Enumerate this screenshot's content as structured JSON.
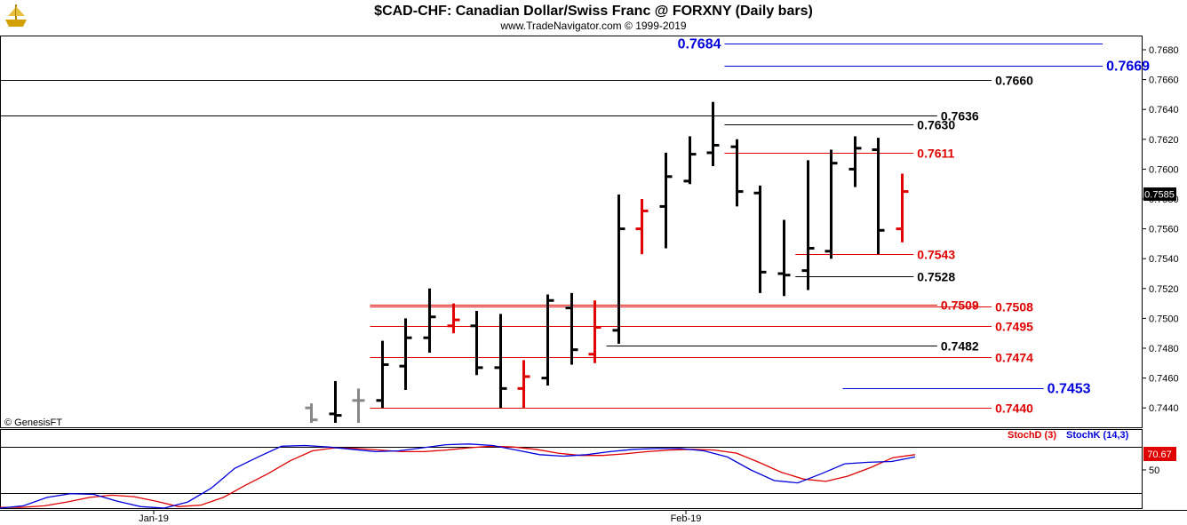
{
  "header": {
    "title": "$CAD-CHF:  Canadian Dollar/Swiss Franc @ FORXNY  (Daily bars)",
    "subtitle": "www.TradeNavigator.com © 1999-2019"
  },
  "copyright": "© GenesisFT",
  "colors": {
    "black": "#000000",
    "red": "#e00000",
    "blue": "#0000dd",
    "gray": "#888888",
    "stoch_d": "#e00000",
    "stoch_k": "#0000dd",
    "current_price_bg": "#000000",
    "stoch_value_bg": "#e00000"
  },
  "icons": {
    "logo": "trade-navigator-ship-logo-icon"
  },
  "chart_data": [
    {
      "type": "bar",
      "subtype": "ohlc",
      "title": "$CAD-CHF:  Canadian Dollar/Swiss Franc @ FORXNY  (Daily bars)",
      "ylim": [
        0.743,
        0.77
      ],
      "y_ticks": [
        "0.7680",
        "0.7660",
        "0.7640",
        "0.7620",
        "0.7600",
        "0.7580",
        "0.7560",
        "0.7540",
        "0.7520",
        "0.7500",
        "0.7480",
        "0.7460",
        "0.7440"
      ],
      "x_ticks": [
        "Jan-19",
        "Feb-19"
      ],
      "current_price": "0.7585",
      "bars": [
        {
          "o": 0.744,
          "h": 0.7443,
          "l": 0.743,
          "c": 0.7432,
          "color": "gray"
        },
        {
          "o": 0.7436,
          "h": 0.7458,
          "l": 0.743,
          "c": 0.7435,
          "color": "black"
        },
        {
          "o": 0.7445,
          "h": 0.7453,
          "l": 0.743,
          "c": 0.7445,
          "color": "gray"
        },
        {
          "o": 0.7445,
          "h": 0.7485,
          "l": 0.744,
          "c": 0.7469,
          "color": "black"
        },
        {
          "o": 0.7468,
          "h": 0.75,
          "l": 0.7452,
          "c": 0.7487,
          "color": "black"
        },
        {
          "o": 0.7487,
          "h": 0.752,
          "l": 0.7477,
          "c": 0.7501,
          "color": "black"
        },
        {
          "o": 0.7495,
          "h": 0.751,
          "l": 0.749,
          "c": 0.7499,
          "color": "red"
        },
        {
          "o": 0.7495,
          "h": 0.7505,
          "l": 0.7462,
          "c": 0.7467,
          "color": "black"
        },
        {
          "o": 0.7467,
          "h": 0.7503,
          "l": 0.744,
          "c": 0.7453,
          "color": "black"
        },
        {
          "o": 0.7453,
          "h": 0.7472,
          "l": 0.744,
          "c": 0.7461,
          "color": "red"
        },
        {
          "o": 0.746,
          "h": 0.7516,
          "l": 0.7455,
          "c": 0.7512,
          "color": "black"
        },
        {
          "o": 0.7507,
          "h": 0.7517,
          "l": 0.7469,
          "c": 0.7479,
          "color": "black"
        },
        {
          "o": 0.7476,
          "h": 0.7512,
          "l": 0.747,
          "c": 0.7494,
          "color": "red"
        },
        {
          "o": 0.7492,
          "h": 0.7583,
          "l": 0.7483,
          "c": 0.756,
          "color": "black"
        },
        {
          "o": 0.756,
          "h": 0.758,
          "l": 0.7543,
          "c": 0.7572,
          "color": "red"
        },
        {
          "o": 0.7575,
          "h": 0.7611,
          "l": 0.7547,
          "c": 0.7595,
          "color": "black"
        },
        {
          "o": 0.7592,
          "h": 0.7622,
          "l": 0.759,
          "c": 0.761,
          "color": "black"
        },
        {
          "o": 0.7611,
          "h": 0.7645,
          "l": 0.7602,
          "c": 0.7616,
          "color": "black"
        },
        {
          "o": 0.7615,
          "h": 0.762,
          "l": 0.7575,
          "c": 0.7585,
          "color": "black"
        },
        {
          "o": 0.7584,
          "h": 0.7589,
          "l": 0.7517,
          "c": 0.7531,
          "color": "black"
        },
        {
          "o": 0.753,
          "h": 0.7566,
          "l": 0.7515,
          "c": 0.7529,
          "color": "black"
        },
        {
          "o": 0.7532,
          "h": 0.7606,
          "l": 0.7519,
          "c": 0.7547,
          "color": "black"
        },
        {
          "o": 0.7545,
          "h": 0.7613,
          "l": 0.754,
          "c": 0.7604,
          "color": "black"
        },
        {
          "o": 0.76,
          "h": 0.7622,
          "l": 0.7588,
          "c": 0.7614,
          "color": "black"
        },
        {
          "o": 0.7613,
          "h": 0.7621,
          "l": 0.7543,
          "c": 0.7559,
          "color": "black"
        },
        {
          "o": 0.756,
          "h": 0.7597,
          "l": 0.7551,
          "c": 0.7585,
          "color": "red"
        }
      ],
      "levels": [
        {
          "value": 0.7684,
          "label": "0.7684",
          "color": "blue",
          "x0_bar": 17.5,
          "x1_bar": 33.5,
          "label_side": "left",
          "big": true
        },
        {
          "value": 0.7669,
          "label": "0.7669",
          "color": "blue",
          "x0_bar": 17.5,
          "x1_bar": 33.5,
          "label_side": "right",
          "big": true
        },
        {
          "value": 0.766,
          "label": "0.7660",
          "color": "black",
          "x0_bar": -14,
          "x1_bar": 28.8,
          "label_side": "right"
        },
        {
          "value": 0.7636,
          "label": "0.7636",
          "color": "black",
          "x0_bar": -14,
          "x1_bar": 26.5,
          "label_side": "right"
        },
        {
          "value": 0.763,
          "label": "0.7630",
          "color": "black",
          "x0_bar": 17.5,
          "x1_bar": 25.5,
          "label_side": "right"
        },
        {
          "value": 0.7611,
          "label": "0.7611",
          "color": "red",
          "x0_bar": 17.5,
          "x1_bar": 25.5,
          "label_side": "right"
        },
        {
          "value": 0.7543,
          "label": "0.7543",
          "color": "red",
          "x0_bar": 20.5,
          "x1_bar": 25.5,
          "label_side": "right"
        },
        {
          "value": 0.7528,
          "label": "0.7528",
          "color": "black",
          "x0_bar": 20.5,
          "x1_bar": 25.5,
          "label_side": "right"
        },
        {
          "value": 0.7509,
          "label": "0.7509",
          "color": "red",
          "x0_bar": 2.5,
          "x1_bar": 26.5,
          "label_side": "right"
        },
        {
          "value": 0.7508,
          "label": "0.7508",
          "color": "red",
          "x0_bar": 2.5,
          "x1_bar": 28.8,
          "label_side": "right"
        },
        {
          "value": 0.7495,
          "label": "0.7495",
          "color": "red",
          "x0_bar": 2.5,
          "x1_bar": 28.8,
          "label_side": "right"
        },
        {
          "value": 0.7482,
          "label": "0.7482",
          "color": "black",
          "x0_bar": 12.5,
          "x1_bar": 26.5,
          "label_side": "right"
        },
        {
          "value": 0.7474,
          "label": "0.7474",
          "color": "red",
          "x0_bar": 2.5,
          "x1_bar": 28.8,
          "label_side": "right"
        },
        {
          "value": 0.7453,
          "label": "0.7453",
          "color": "blue",
          "x0_bar": 22.5,
          "x1_bar": 31.0,
          "label_side": "right",
          "big": true
        },
        {
          "value": 0.744,
          "label": "0.7440",
          "color": "red",
          "x0_bar": 2.5,
          "x1_bar": 28.8,
          "label_side": "right"
        }
      ]
    },
    {
      "type": "line",
      "title": "",
      "ylim": [
        0,
        100
      ],
      "y_ticks": [
        "50"
      ],
      "reference_lines": [
        80,
        20
      ],
      "current_value": "70.67",
      "series": [
        {
          "name": "StochD (3)",
          "color": "red",
          "values": [
            1,
            1,
            3,
            8,
            14,
            17,
            15,
            9,
            2,
            4,
            14,
            30,
            45,
            62,
            75,
            79,
            78,
            76,
            74,
            74,
            76,
            79,
            81,
            80,
            77,
            72,
            69,
            69,
            71,
            74,
            76,
            77,
            76,
            72,
            60,
            47,
            38,
            35,
            42,
            53,
            66,
            70
          ]
        },
        {
          "name": "StochK (14,3)",
          "color": "blue",
          "values": [
            0,
            3,
            14,
            19,
            18,
            9,
            2,
            0,
            8,
            26,
            52,
            67,
            81,
            82,
            80,
            77,
            74,
            75,
            79,
            83,
            84,
            82,
            76,
            70,
            68,
            70,
            74,
            77,
            78,
            78,
            75,
            67,
            50,
            36,
            33,
            45,
            58,
            60,
            61,
            67
          ]
        }
      ]
    }
  ]
}
